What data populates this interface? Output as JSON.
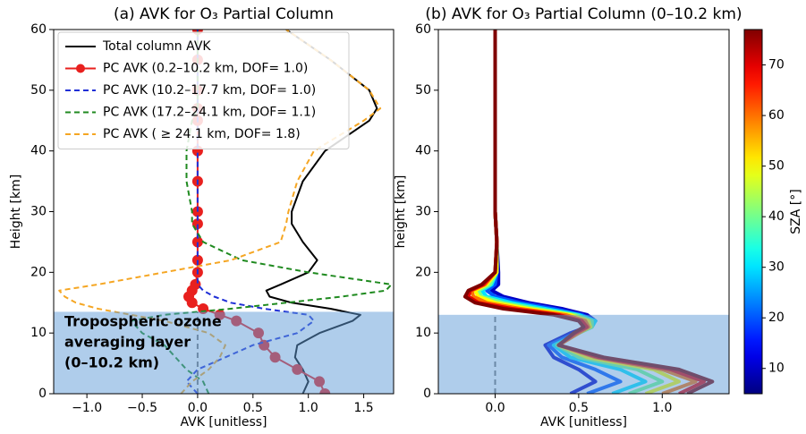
{
  "chart_data": [
    {
      "type": "line",
      "title": "(a) AVK for O₃ Partial Column",
      "xlabel": "AVK [unitless]",
      "ylabel": "Height [km]",
      "xlim": [
        -1.3,
        1.77
      ],
      "xticks": [
        {
          "value": -1,
          "label": "−1.0"
        },
        {
          "value": -0.5,
          "label": "−0.5"
        },
        {
          "value": 0,
          "label": "0.0"
        },
        {
          "value": 0.5,
          "label": "0.5"
        },
        {
          "value": 1,
          "label": "1.0"
        },
        {
          "value": 1.5,
          "label": "1.5"
        }
      ],
      "ylim": [
        0,
        60
      ],
      "yticks": [
        0,
        10,
        20,
        30,
        40,
        50,
        60
      ],
      "legend": "upper left",
      "shade_ylim": [
        0,
        13.5
      ],
      "vline_x": 0,
      "annotation": [
        "Tropospheric ozone",
        "averaging layer",
        "(0–10.2 km)"
      ],
      "y": [
        0,
        2,
        4,
        6,
        8,
        10,
        12,
        13,
        14,
        15,
        16,
        17,
        18,
        20,
        22,
        25,
        28,
        30,
        35,
        40,
        45,
        47,
        50,
        55,
        60
      ],
      "series": [
        {
          "name": "Total column AVK",
          "color": "#000000",
          "style": "solid",
          "values": [
            0.95,
            1.0,
            0.95,
            0.88,
            0.9,
            1.1,
            1.4,
            1.47,
            1.2,
            0.85,
            0.65,
            0.62,
            0.75,
            1.0,
            1.08,
            0.95,
            0.85,
            0.85,
            0.95,
            1.15,
            1.55,
            1.62,
            1.55,
            1.2,
            0.8
          ]
        },
        {
          "name": "PC AVK (0.2–10.2 km, DOF= 1.0)",
          "color": "#e8201e",
          "style": "marker",
          "values": [
            1.15,
            1.1,
            0.9,
            0.7,
            0.6,
            0.55,
            0.35,
            0.2,
            0.05,
            -0.05,
            -0.08,
            -0.05,
            -0.02,
            0,
            0,
            0,
            0,
            0,
            0,
            0,
            0,
            0,
            0,
            0,
            0
          ]
        },
        {
          "name": "PC AVK (10.2–17.7 km, DOF= 1.0)",
          "color": "#1f2fd6",
          "style": "dashed",
          "values": [
            0,
            -0.1,
            0,
            0.25,
            0.5,
            0.9,
            1.05,
            1.0,
            0.6,
            0.3,
            0.15,
            0.05,
            0,
            0,
            0,
            0,
            0,
            0,
            0,
            0,
            0,
            0,
            0,
            0,
            0
          ]
        },
        {
          "name": "PC AVK (17.2–24.1 km, DOF= 1.1)",
          "color": "#1f8a1f",
          "style": "dashed",
          "values": [
            0.1,
            0.05,
            -0.1,
            -0.2,
            -0.3,
            -0.5,
            -0.6,
            -0.3,
            0.3,
            0.8,
            1.3,
            1.7,
            1.75,
            1.0,
            0.4,
            0.05,
            -0.05,
            -0.05,
            -0.1,
            -0.1,
            -0.05,
            0,
            0,
            0,
            0
          ]
        },
        {
          "name": "PC AVK ( ≥ 24.1 km, DOF= 1.8)",
          "color": "#f5a623",
          "style": "dashed",
          "values": [
            -0.15,
            -0.05,
            0.1,
            0.2,
            0.25,
            0.1,
            -0.3,
            -0.6,
            -0.9,
            -1.1,
            -1.2,
            -1.25,
            -0.9,
            -0.3,
            0.3,
            0.75,
            0.8,
            0.82,
            0.9,
            1.05,
            1.5,
            1.65,
            1.55,
            1.2,
            0.8
          ]
        }
      ]
    },
    {
      "type": "line",
      "title": "(b) AVK for O₃  Partial Column (0–10.2 km)",
      "xlabel": "AVK [unitless]",
      "ylabel": "height [km]",
      "xlim": [
        -0.34,
        1.4
      ],
      "xticks": [
        {
          "value": 0,
          "label": "0.0"
        },
        {
          "value": 0.5,
          "label": "0.5"
        },
        {
          "value": 1,
          "label": "1.0"
        }
      ],
      "ylim": [
        0,
        60
      ],
      "yticks": [
        0,
        10,
        20,
        30,
        40,
        50,
        60
      ],
      "shade_ylim": [
        0,
        13
      ],
      "vline_x": 0,
      "colorbar": {
        "label": "SZA [°]",
        "clim": [
          5,
          77
        ],
        "ticks": [
          10,
          20,
          30,
          40,
          50,
          60,
          70
        ],
        "colormap": "jet"
      },
      "y": [
        0,
        2,
        4,
        6,
        8,
        10,
        11,
        12,
        13,
        14,
        15,
        16,
        17,
        18,
        20,
        25,
        30,
        40,
        50,
        60
      ],
      "series": [
        {
          "sza": 10,
          "values": [
            0.45,
            0.6,
            0.5,
            0.35,
            0.3,
            0.45,
            0.55,
            0.6,
            0.55,
            0.4,
            0.2,
            0.05,
            -0.02,
            0.02,
            0.02,
            0.01,
            0,
            0,
            0,
            0
          ]
        },
        {
          "sza": 20,
          "values": [
            0.55,
            0.75,
            0.6,
            0.4,
            0.32,
            0.48,
            0.57,
            0.6,
            0.52,
            0.35,
            0.15,
            0,
            -0.05,
            0,
            0.01,
            0.01,
            0,
            0,
            0,
            0
          ]
        },
        {
          "sza": 30,
          "values": [
            0.7,
            0.9,
            0.75,
            0.45,
            0.35,
            0.5,
            0.58,
            0.6,
            0.5,
            0.3,
            0.1,
            -0.05,
            -0.08,
            -0.02,
            0.01,
            0.01,
            0,
            0,
            0,
            0
          ]
        },
        {
          "sza": 40,
          "values": [
            0.8,
            1.0,
            0.85,
            0.5,
            0.37,
            0.5,
            0.58,
            0.58,
            0.48,
            0.25,
            0.05,
            -0.08,
            -0.1,
            -0.03,
            0.01,
            0.01,
            0,
            0,
            0,
            0
          ]
        },
        {
          "sza": 50,
          "values": [
            0.9,
            1.1,
            0.95,
            0.55,
            0.38,
            0.5,
            0.57,
            0.56,
            0.45,
            0.2,
            0,
            -0.1,
            -0.12,
            -0.05,
            0.01,
            0.01,
            0,
            0,
            0,
            0
          ]
        },
        {
          "sza": 60,
          "values": [
            1.0,
            1.2,
            1.0,
            0.6,
            0.38,
            0.5,
            0.56,
            0.54,
            0.42,
            0.15,
            -0.05,
            -0.13,
            -0.14,
            -0.06,
            0,
            0.01,
            0,
            0,
            0,
            0
          ]
        },
        {
          "sza": 70,
          "values": [
            1.1,
            1.25,
            1.05,
            0.62,
            0.38,
            0.48,
            0.55,
            0.52,
            0.38,
            0.1,
            -0.1,
            -0.16,
            -0.15,
            -0.07,
            0,
            0.01,
            0,
            0,
            0,
            0
          ]
        },
        {
          "sza": 77,
          "values": [
            1.15,
            1.3,
            1.1,
            0.65,
            0.38,
            0.47,
            0.53,
            0.5,
            0.35,
            0.05,
            -0.12,
            -0.18,
            -0.16,
            -0.08,
            0,
            0.01,
            0,
            0,
            0,
            0
          ]
        }
      ]
    }
  ]
}
